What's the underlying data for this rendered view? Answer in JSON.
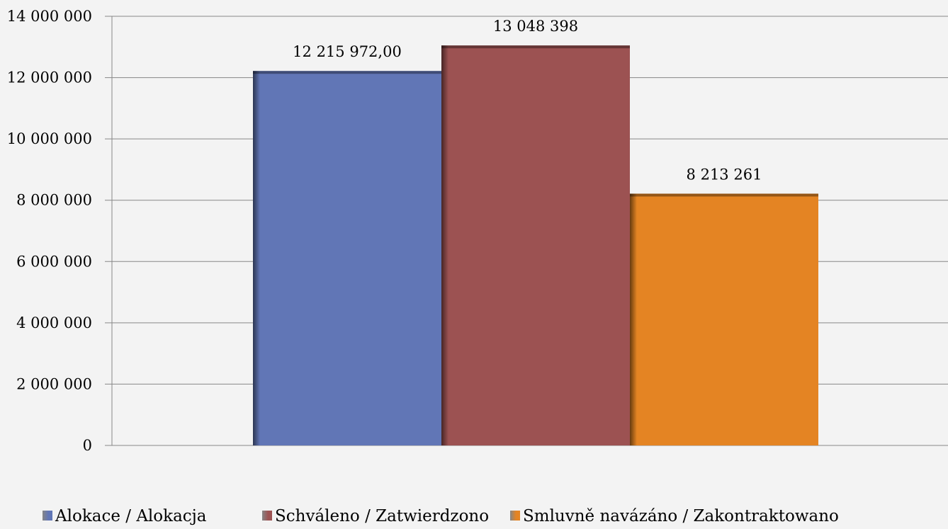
{
  "chart_data": {
    "type": "bar",
    "categories": [
      ""
    ],
    "series": [
      {
        "name": "Alokace / Alokacja",
        "values": [
          12215972
        ],
        "label": "12 215 972,00",
        "color": "#6176b6"
      },
      {
        "name": "Schváleno / Zatwierdzono",
        "values": [
          13048398
        ],
        "label": "13 048 398",
        "color": "#9c5252"
      },
      {
        "name": "Smluvně navázáno / Zakontraktowano",
        "values": [
          8213261
        ],
        "label": "8 213 261",
        "color": "#e48423"
      }
    ],
    "ylim": [
      0,
      14000000
    ],
    "yticks": [
      0,
      2000000,
      4000000,
      6000000,
      8000000,
      10000000,
      12000000,
      14000000
    ],
    "ytick_labels": [
      "0",
      "2 000 000",
      "4 000 000",
      "6 000 000",
      "8 000 000",
      "10 000 000",
      "12 000 000",
      "14 000 000"
    ],
    "grid": true,
    "legend_position": "bottom",
    "title": "",
    "xlabel": "",
    "ylabel": ""
  }
}
